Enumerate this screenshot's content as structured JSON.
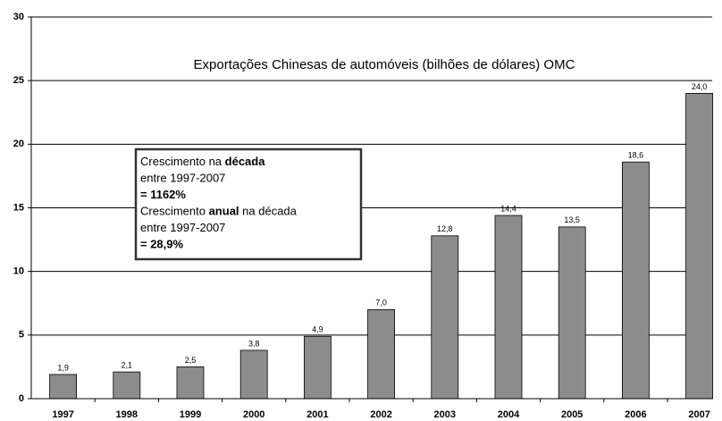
{
  "chart_data": {
    "type": "bar",
    "title": "Exportações Chinesas de automóveis (bilhões de dólares) OMC",
    "categories": [
      "1997",
      "1998",
      "1999",
      "2000",
      "2001",
      "2002",
      "2003",
      "2004",
      "2005",
      "2006",
      "2007"
    ],
    "values": [
      1.9,
      2.1,
      2.5,
      3.8,
      4.9,
      7.0,
      12.8,
      14.4,
      13.5,
      18.6,
      24.0
    ],
    "value_labels": [
      "1,9",
      "2,1",
      "2,5",
      "3,8",
      "4,9",
      "7,0",
      "12,8",
      "14,4",
      "13,5",
      "18,6",
      "24,0"
    ],
    "color": "#8c8c8c",
    "ylim": [
      0,
      30
    ],
    "yticks": [
      0,
      5,
      10,
      15,
      20,
      25,
      30
    ],
    "grid": true,
    "annotation": [
      [
        {
          "text": "Crescimento na "
        },
        {
          "text": "década",
          "bold": true
        }
      ],
      [
        {
          "text": "entre 1997-2007"
        }
      ],
      [
        {
          "text": "= 1162%",
          "bold": true
        }
      ],
      [
        {
          "text": "Crescimento "
        },
        {
          "text": "anual",
          "bold": true
        },
        {
          "text": " na década"
        }
      ],
      [
        {
          "text": "entre 1997-2007"
        }
      ],
      [
        {
          "text": "= 28,9%",
          "bold": true
        }
      ]
    ]
  }
}
